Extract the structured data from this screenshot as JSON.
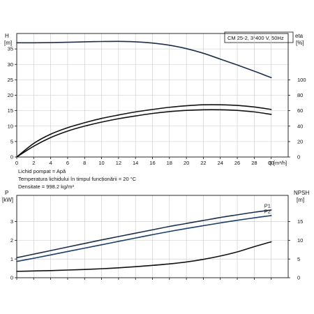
{
  "chart_data": [
    {
      "type": "line",
      "ylabel_left": "H",
      "yunit_left": "[m]",
      "ylabel_right": "eta",
      "yunit_right": "[%]",
      "xlabel": "Q [m³/h]",
      "legend_box": "CM 25-2, 3*400 V, 50Hz",
      "xlim": [
        0,
        32
      ],
      "ylim_left": [
        0,
        40
      ],
      "ylim_right": [
        0,
        160
      ],
      "x_ticks": [
        "0",
        "2",
        "4",
        "6",
        "8",
        "10",
        "12",
        "14",
        "16",
        "18",
        "20",
        "22",
        "24",
        "26",
        "28",
        "30"
      ],
      "y_ticks_left": [
        "0",
        "5",
        "10",
        "15",
        "20",
        "25",
        "30",
        "35"
      ],
      "y_ticks_right": [
        "0",
        "20",
        "40",
        "60",
        "80",
        "100"
      ],
      "grid": true,
      "series": [
        {
          "axis": "left",
          "x": [
            0,
            2,
            4,
            6,
            8,
            10,
            12,
            14,
            16,
            18,
            20,
            22,
            24,
            26,
            28,
            30
          ],
          "y": [
            37.0,
            37.0,
            37.05,
            37.15,
            37.3,
            37.4,
            37.45,
            37.3,
            36.9,
            36.2,
            35.1,
            33.6,
            31.7,
            29.8,
            27.8,
            25.7
          ]
        },
        {
          "axis": "left",
          "x": [
            0,
            2,
            4,
            6,
            8,
            10,
            12,
            14,
            16,
            18,
            20,
            22,
            24,
            26,
            28,
            30
          ],
          "y": [
            0,
            4.4,
            7.4,
            9.5,
            11.1,
            12.5,
            13.6,
            14.6,
            15.4,
            16.1,
            16.6,
            16.9,
            16.9,
            16.7,
            16.2,
            15.4
          ]
        },
        {
          "axis": "left",
          "x": [
            0,
            2,
            4,
            6,
            8,
            10,
            12,
            14,
            16,
            18,
            20,
            22,
            24,
            26,
            28,
            30
          ],
          "y": [
            0,
            3.5,
            6.3,
            8.4,
            10.0,
            11.3,
            12.4,
            13.3,
            14.1,
            14.7,
            15.1,
            15.3,
            15.3,
            15.1,
            14.6,
            13.8
          ]
        }
      ]
    },
    {
      "type": "line",
      "ylabel_left": "P",
      "yunit_left": "[kW]",
      "ylabel_right": "NPSH",
      "yunit_right": "[m]",
      "xlim": [
        0,
        32
      ],
      "ylim_left": [
        0,
        4.4
      ],
      "ylim_right": [
        0,
        22
      ],
      "y_ticks_left": [
        "0",
        "1",
        "2",
        "3"
      ],
      "y_ticks_right": [
        "0",
        "5",
        "10",
        "15"
      ],
      "grid": true,
      "series": [
        {
          "name": "P1",
          "axis": "left",
          "x": [
            0,
            2,
            4,
            6,
            8,
            10,
            12,
            14,
            16,
            18,
            20,
            22,
            24,
            26,
            28,
            30
          ],
          "y": [
            1.07,
            1.26,
            1.45,
            1.64,
            1.83,
            2.02,
            2.2,
            2.38,
            2.56,
            2.74,
            2.9,
            3.06,
            3.22,
            3.36,
            3.5,
            3.62
          ]
        },
        {
          "name": "P2",
          "axis": "left",
          "x": [
            0,
            2,
            4,
            6,
            8,
            10,
            12,
            14,
            16,
            18,
            20,
            22,
            24,
            26,
            28,
            30
          ],
          "y": [
            0.87,
            1.04,
            1.22,
            1.4,
            1.58,
            1.76,
            1.94,
            2.12,
            2.3,
            2.47,
            2.63,
            2.78,
            2.93,
            3.07,
            3.2,
            3.32
          ]
        },
        {
          "axis": "right",
          "x": [
            0,
            2,
            4,
            6,
            8,
            10,
            12,
            14,
            16,
            18,
            20,
            22,
            24,
            26,
            28,
            30
          ],
          "y": [
            1.7,
            1.8,
            1.9,
            2.05,
            2.2,
            2.4,
            2.65,
            2.95,
            3.3,
            3.7,
            4.2,
            4.9,
            5.8,
            6.9,
            8.3,
            9.6
          ]
        }
      ]
    }
  ],
  "info_lines": [
    "Lichid pompat = Apă",
    "Temperatura lichidului în timpul funcționării = 20 °C",
    "Densitate = 998.2 kg/m³"
  ],
  "colors": {
    "head_curve": "#1c2f4a",
    "efficiency_curves": "#111111",
    "p1": "#1c2f4a",
    "p2": "#1c3f6b",
    "npsh": "#111111"
  }
}
